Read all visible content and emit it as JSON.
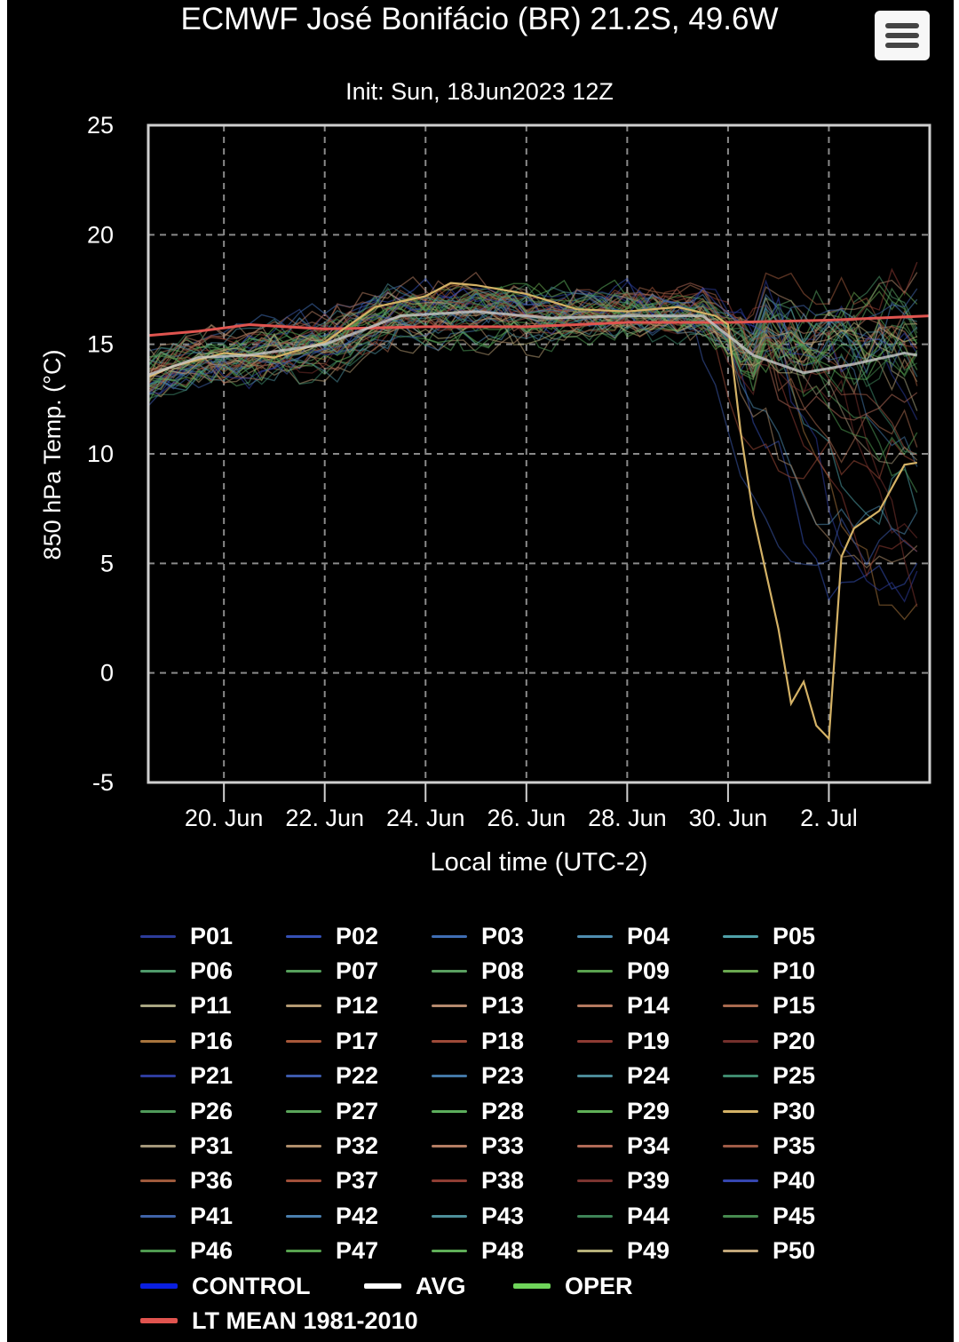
{
  "title": "ECMWF José Bonifácio (BR) 21.2S, 49.6W",
  "subtitle": "Init: Sun, 18Jun2023 12Z",
  "menu_icon": "hamburger-menu-icon",
  "chart_data": {
    "type": "line",
    "title": "ECMWF José Bonifácio (BR) 21.2S, 49.6W",
    "subtitle": "Init: Sun, 18Jun2023 12Z",
    "xlabel": "Local time (UTC-2)",
    "ylabel": "850 hPa Temp. (°C)",
    "ylim": [
      -5,
      25
    ],
    "yticks": [
      "25",
      "20",
      "15",
      "10",
      "5",
      "0",
      "-5"
    ],
    "xlim": [
      "2023-06-18T12:00",
      "2023-07-04T00:00"
    ],
    "xticks": [
      {
        "date": "2023-06-20",
        "label": "20. Jun"
      },
      {
        "date": "2023-06-22",
        "label": "22. Jun"
      },
      {
        "date": "2023-06-24",
        "label": "24. Jun"
      },
      {
        "date": "2023-06-26",
        "label": "26. Jun"
      },
      {
        "date": "2023-06-28",
        "label": "28. Jun"
      },
      {
        "date": "2023-06-30",
        "label": "30. Jun"
      },
      {
        "date": "2023-07-02",
        "label": "2. Jul"
      }
    ],
    "grid": true,
    "legend_position": "bottom",
    "series": [
      {
        "name": "LT MEAN 1981-2010",
        "color": "#e0544f",
        "x": [
          "2023-06-18T12:00",
          "2023-06-19T12:00",
          "2023-06-20T12:00",
          "2023-06-22T00:00",
          "2023-06-24T00:00",
          "2023-06-26T00:00",
          "2023-06-28T00:00",
          "2023-06-30T00:00",
          "2023-07-02T00:00",
          "2023-07-04T00:00"
        ],
        "y": [
          15.4,
          15.6,
          15.9,
          15.7,
          15.8,
          15.8,
          16.0,
          16.0,
          16.1,
          16.3
        ]
      },
      {
        "name": "P30",
        "color": "#d4b266",
        "x": [
          "2023-06-18T12:00",
          "2023-06-19T00:00",
          "2023-06-19T12:00",
          "2023-06-20T00:00",
          "2023-06-21T00:00",
          "2023-06-22T00:00",
          "2023-06-23T00:00",
          "2023-06-24T00:00",
          "2023-06-24T12:00",
          "2023-06-25T00:00",
          "2023-06-26T00:00",
          "2023-06-27T00:00",
          "2023-06-28T00:00",
          "2023-06-29T00:00",
          "2023-06-29T18:00",
          "2023-06-30T00:00",
          "2023-06-30T06:00",
          "2023-06-30T12:00",
          "2023-07-01T00:00",
          "2023-07-01T06:00",
          "2023-07-01T12:00",
          "2023-07-01T18:00",
          "2023-07-02T00:00",
          "2023-07-02T06:00",
          "2023-07-02T12:00",
          "2023-07-03T00:00",
          "2023-07-03T12:00",
          "2023-07-03T18:00"
        ],
        "y": [
          13.5,
          14.0,
          14.3,
          14.6,
          14.4,
          15.1,
          16.7,
          17.2,
          17.8,
          17.7,
          17.3,
          16.6,
          16.5,
          16.7,
          16.3,
          15.9,
          11.0,
          7.2,
          2.0,
          -1.4,
          -0.4,
          -2.4,
          -3.0,
          5.3,
          6.6,
          7.4,
          9.5,
          9.6
        ]
      },
      {
        "name": "AVG",
        "color": "#c8c8c8",
        "x": [
          "2023-06-18T12:00",
          "2023-06-19T12:00",
          "2023-06-20T12:00",
          "2023-06-22T00:00",
          "2023-06-23T12:00",
          "2023-06-25T00:00",
          "2023-06-26T12:00",
          "2023-06-28T00:00",
          "2023-06-29T12:00",
          "2023-06-30T12:00",
          "2023-07-01T12:00",
          "2023-07-02T12:00",
          "2023-07-03T12:00",
          "2023-07-03T18:00"
        ],
        "y": [
          13.6,
          14.4,
          14.5,
          15.0,
          16.3,
          16.5,
          16.2,
          16.3,
          16.3,
          14.5,
          13.7,
          14.1,
          14.6,
          14.5
        ]
      }
    ]
  },
  "legend": {
    "columns": 5,
    "items": [
      {
        "label": "P01",
        "color": "#2c3c9a"
      },
      {
        "label": "P02",
        "color": "#3550b5"
      },
      {
        "label": "P03",
        "color": "#3f6db3"
      },
      {
        "label": "P04",
        "color": "#4f8db0"
      },
      {
        "label": "P05",
        "color": "#4fa0a8"
      },
      {
        "label": "P06",
        "color": "#4f9a6b"
      },
      {
        "label": "P07",
        "color": "#56a05c"
      },
      {
        "label": "P08",
        "color": "#5aa060"
      },
      {
        "label": "P09",
        "color": "#5aa24f"
      },
      {
        "label": "P10",
        "color": "#6aa850"
      },
      {
        "label": "P11",
        "color": "#a9a682"
      },
      {
        "label": "P12",
        "color": "#b49a73"
      },
      {
        "label": "P13",
        "color": "#b58a6e"
      },
      {
        "label": "P14",
        "color": "#b47a60"
      },
      {
        "label": "P15",
        "color": "#a86a4f"
      },
      {
        "label": "P16",
        "color": "#a8743d"
      },
      {
        "label": "P17",
        "color": "#a8583a"
      },
      {
        "label": "P18",
        "color": "#9e4a38"
      },
      {
        "label": "P19",
        "color": "#8e3b33"
      },
      {
        "label": "P20",
        "color": "#74302c"
      },
      {
        "label": "P21",
        "color": "#2e3c9e"
      },
      {
        "label": "P22",
        "color": "#3d5aac"
      },
      {
        "label": "P23",
        "color": "#4377a6"
      },
      {
        "label": "P24",
        "color": "#4b8a97"
      },
      {
        "label": "P25",
        "color": "#3f8a6e"
      },
      {
        "label": "P26",
        "color": "#4f9a5a"
      },
      {
        "label": "P27",
        "color": "#5aa55a"
      },
      {
        "label": "P28",
        "color": "#5cae5c"
      },
      {
        "label": "P29",
        "color": "#5fb057"
      },
      {
        "label": "P30",
        "color": "#d4b266"
      },
      {
        "label": "P31",
        "color": "#a4977a"
      },
      {
        "label": "P32",
        "color": "#b08e6b"
      },
      {
        "label": "P33",
        "color": "#b47d63"
      },
      {
        "label": "P34",
        "color": "#b06a57"
      },
      {
        "label": "P35",
        "color": "#9f5b47"
      },
      {
        "label": "P36",
        "color": "#9f5a3c"
      },
      {
        "label": "P37",
        "color": "#a1503a"
      },
      {
        "label": "P38",
        "color": "#8f3d33"
      },
      {
        "label": "P39",
        "color": "#7b3430"
      },
      {
        "label": "P40",
        "color": "#3546b0"
      },
      {
        "label": "P41",
        "color": "#3f63a8"
      },
      {
        "label": "P42",
        "color": "#4a7fae"
      },
      {
        "label": "P43",
        "color": "#4d8f9a"
      },
      {
        "label": "P44",
        "color": "#3e8457"
      },
      {
        "label": "P45",
        "color": "#468a4f"
      },
      {
        "label": "P46",
        "color": "#4f9a50"
      },
      {
        "label": "P47",
        "color": "#58a24f"
      },
      {
        "label": "P48",
        "color": "#5fae58"
      },
      {
        "label": "P49",
        "color": "#b6b07a"
      },
      {
        "label": "P50",
        "color": "#c2a77a"
      },
      {
        "label": "CONTROL",
        "color": "#0a1fe0",
        "bold_line": true
      },
      {
        "label": "AVG",
        "color": "#ffffff",
        "bold_line": true
      },
      {
        "label": "OPER",
        "color": "#6fd45a",
        "bold_line": true
      },
      {
        "label": "LT MEAN 1981-2010",
        "color": "#e0544f",
        "bold_line": true
      }
    ]
  }
}
